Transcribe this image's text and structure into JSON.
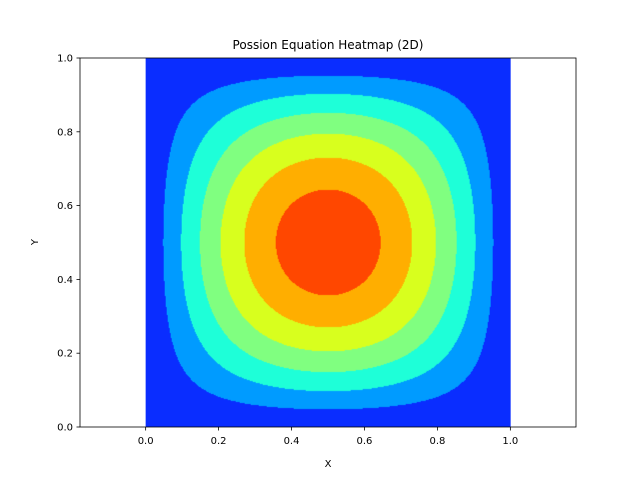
{
  "chart_data": {
    "type": "heatmap",
    "title": "Possion Equation Heatmap (2D)",
    "xlabel": "X",
    "ylabel": "Y",
    "xlim": [
      -0.18,
      1.18
    ],
    "ylim": [
      0.0,
      1.0
    ],
    "xticks": [
      "0.0",
      "0.2",
      "0.4",
      "0.6",
      "0.8",
      "1.0"
    ],
    "yticks": [
      "0.0",
      "0.2",
      "0.4",
      "0.6",
      "0.8",
      "1.0"
    ],
    "grid": false,
    "colormap": "jet",
    "field_domain": {
      "x": [
        0.0,
        1.0
      ],
      "y": [
        0.0,
        1.0
      ]
    },
    "field": "sin(pi*x)*sin(pi*y)",
    "contour_levels": [
      0.0,
      0.15,
      0.3,
      0.45,
      0.6,
      0.75,
      0.9,
      1.05
    ],
    "level_colors": [
      "#0a2dff",
      "#009bff",
      "#1effd8",
      "#80ff80",
      "#d8ff1e",
      "#ffae00",
      "#ff4700",
      "#c40000"
    ]
  }
}
